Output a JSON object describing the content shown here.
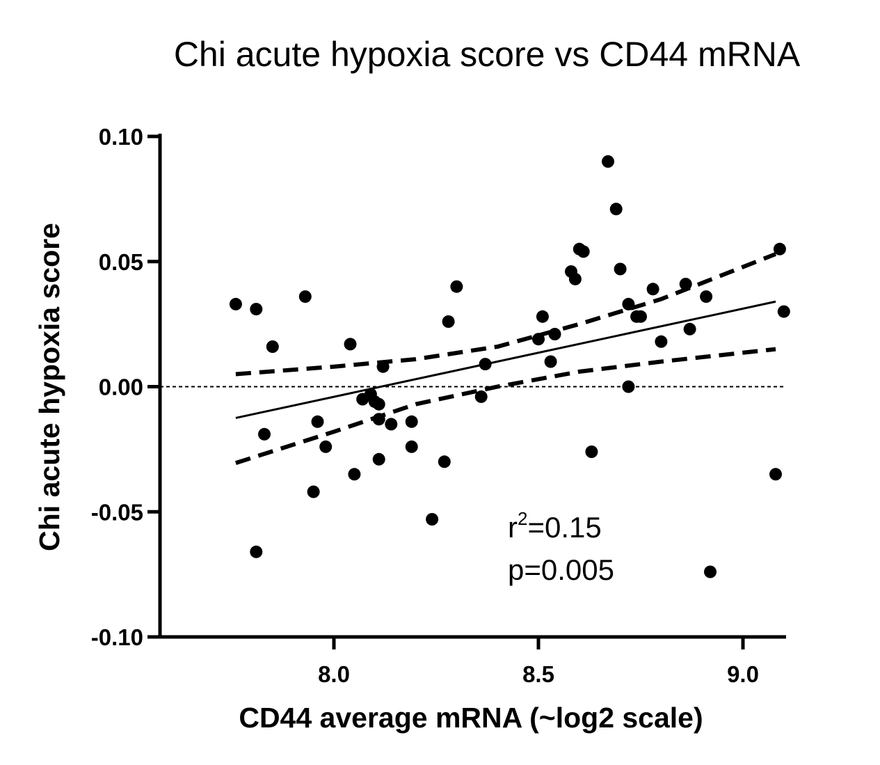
{
  "chart_data": {
    "type": "scatter",
    "title": "Chi acute hypoxia score vs CD44 mRNA",
    "xlabel": "CD44 average mRNA (~log2 scale)",
    "ylabel": "Chi acute hypoxia score",
    "xlim": [
      7.6,
      9.1
    ],
    "ylim": [
      -0.1,
      0.1
    ],
    "x_ticks": [
      8.0,
      8.5,
      9.0
    ],
    "x_tick_labels": [
      "8.0",
      "8.5",
      "9.0"
    ],
    "y_ticks": [
      0.1,
      0.05,
      0.0,
      -0.05,
      -0.1
    ],
    "y_tick_labels": [
      "0.10",
      "0.05",
      "0.00",
      "-0.05",
      "-0.10"
    ],
    "grid": false,
    "reference_line_y": 0.0,
    "points": [
      {
        "x": 7.76,
        "y": 0.033
      },
      {
        "x": 7.81,
        "y": 0.031
      },
      {
        "x": 7.81,
        "y": -0.066
      },
      {
        "x": 7.83,
        "y": -0.019
      },
      {
        "x": 7.85,
        "y": 0.016
      },
      {
        "x": 7.93,
        "y": 0.036
      },
      {
        "x": 7.95,
        "y": -0.042
      },
      {
        "x": 7.96,
        "y": -0.014
      },
      {
        "x": 7.98,
        "y": -0.024
      },
      {
        "x": 8.04,
        "y": 0.017
      },
      {
        "x": 8.05,
        "y": -0.035
      },
      {
        "x": 8.07,
        "y": -0.005
      },
      {
        "x": 8.09,
        "y": -0.003
      },
      {
        "x": 8.1,
        "y": -0.006
      },
      {
        "x": 8.11,
        "y": -0.007
      },
      {
        "x": 8.11,
        "y": -0.013
      },
      {
        "x": 8.11,
        "y": -0.029
      },
      {
        "x": 8.12,
        "y": 0.008
      },
      {
        "x": 8.14,
        "y": -0.015
      },
      {
        "x": 8.19,
        "y": -0.014
      },
      {
        "x": 8.19,
        "y": -0.024
      },
      {
        "x": 8.24,
        "y": -0.053
      },
      {
        "x": 8.27,
        "y": -0.03
      },
      {
        "x": 8.28,
        "y": 0.026
      },
      {
        "x": 8.3,
        "y": 0.04
      },
      {
        "x": 8.36,
        "y": -0.004
      },
      {
        "x": 8.37,
        "y": 0.009
      },
      {
        "x": 8.5,
        "y": 0.019
      },
      {
        "x": 8.51,
        "y": 0.028
      },
      {
        "x": 8.53,
        "y": 0.01
      },
      {
        "x": 8.54,
        "y": 0.021
      },
      {
        "x": 8.58,
        "y": 0.046
      },
      {
        "x": 8.59,
        "y": 0.043
      },
      {
        "x": 8.6,
        "y": 0.055
      },
      {
        "x": 8.61,
        "y": 0.054
      },
      {
        "x": 8.63,
        "y": -0.026
      },
      {
        "x": 8.67,
        "y": 0.09
      },
      {
        "x": 8.69,
        "y": 0.071
      },
      {
        "x": 8.7,
        "y": 0.047
      },
      {
        "x": 8.72,
        "y": 0.033
      },
      {
        "x": 8.72,
        "y": 0.0
      },
      {
        "x": 8.74,
        "y": 0.028
      },
      {
        "x": 8.75,
        "y": 0.028
      },
      {
        "x": 8.78,
        "y": 0.039
      },
      {
        "x": 8.8,
        "y": 0.018
      },
      {
        "x": 8.86,
        "y": 0.041
      },
      {
        "x": 8.87,
        "y": 0.023
      },
      {
        "x": 8.91,
        "y": 0.036
      },
      {
        "x": 8.92,
        "y": -0.074
      },
      {
        "x": 9.08,
        "y": -0.035
      },
      {
        "x": 9.09,
        "y": 0.055
      },
      {
        "x": 9.1,
        "y": 0.03
      }
    ],
    "fit_line": {
      "x": [
        7.76,
        9.08
      ],
      "y": [
        -0.0125,
        0.034
      ]
    },
    "confidence_upper": {
      "x": [
        7.76,
        8.0,
        8.2,
        8.4,
        8.6,
        8.8,
        9.08
      ],
      "y": [
        0.005,
        0.008,
        0.011,
        0.016,
        0.025,
        0.035,
        0.053
      ]
    },
    "confidence_lower": {
      "x": [
        7.76,
        8.0,
        8.2,
        8.4,
        8.6,
        8.8,
        9.08
      ],
      "y": [
        -0.0305,
        -0.018,
        -0.007,
        0.0,
        0.006,
        0.01,
        0.015
      ]
    },
    "annotations": {
      "r2_prefix": "r",
      "r2_sup": "2",
      "r2_value": "=0.15",
      "p_text": "p=0.005"
    }
  }
}
